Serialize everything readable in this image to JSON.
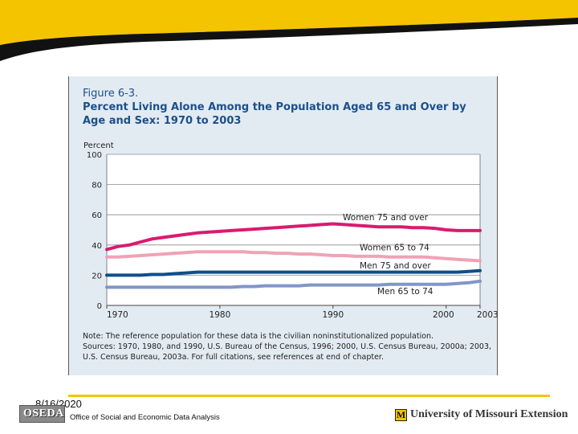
{
  "figure": {
    "label": "Figure 6-3.",
    "title": "Percent Living Alone Among the Population Aged 65 and Over by Age and Sex: 1970 to 2003",
    "note": "Note: The reference population for these data is the civilian noninstitutionalized population.",
    "sources": "Sources: 1970, 1980, and 1990, U.S. Bureau of the Census, 1996; 2000, U.S. Census Bureau, 2000a; 2003, U.S. Census Bureau, 2003a. For full citations, see references at end of chapter."
  },
  "chart_data": {
    "type": "line",
    "ylabel": "Percent",
    "ylim": [
      0,
      100
    ],
    "yticks": [
      0,
      20,
      40,
      60,
      80,
      100
    ],
    "xlim": [
      1970,
      2003
    ],
    "xticks": [
      1970,
      1980,
      1990,
      2000,
      2003
    ],
    "x": [
      1970,
      1971,
      1972,
      1973,
      1974,
      1975,
      1976,
      1977,
      1978,
      1979,
      1980,
      1981,
      1982,
      1983,
      1984,
      1985,
      1986,
      1987,
      1988,
      1989,
      1990,
      1991,
      1992,
      1993,
      1994,
      1995,
      1996,
      1997,
      1998,
      1999,
      2000,
      2001,
      2002,
      2003
    ],
    "series": [
      {
        "name": "Women 75 and over",
        "color": "#d81b6f",
        "values": [
          37,
          39,
          40,
          42,
          44,
          45,
          46,
          47,
          48,
          48.5,
          49,
          49.5,
          50,
          50.5,
          51,
          51.5,
          52,
          52.5,
          53,
          53.5,
          54,
          53.5,
          53,
          52.5,
          52,
          52,
          52,
          51.5,
          51.5,
          51,
          50,
          49.5,
          49.5,
          49.5
        ]
      },
      {
        "name": "Women 65 to 74",
        "color": "#f0a2b6",
        "values": [
          32,
          32,
          32.5,
          33,
          33.5,
          34,
          34.5,
          35,
          35.5,
          35.5,
          35.5,
          35.5,
          35.5,
          35,
          35,
          34.5,
          34.5,
          34,
          34,
          33.5,
          33,
          33,
          32.5,
          32.5,
          32.5,
          32,
          32,
          32,
          32,
          31.5,
          31,
          30.5,
          30,
          29.5
        ]
      },
      {
        "name": "Men 75 and over",
        "color": "#0e4f8b",
        "values": [
          20,
          20,
          20,
          20,
          20.5,
          20.5,
          21,
          21.5,
          22,
          22,
          22,
          22,
          22,
          22,
          22,
          22,
          22,
          22,
          22,
          22,
          22,
          22,
          22,
          22,
          22,
          22,
          22,
          22,
          22,
          22,
          22,
          22,
          22.5,
          23
        ]
      },
      {
        "name": "Men 65 to 74",
        "color": "#8196c8",
        "values": [
          12,
          12,
          12,
          12,
          12,
          12,
          12,
          12,
          12,
          12,
          12,
          12,
          12.5,
          12.5,
          13,
          13,
          13,
          13,
          13.5,
          13.5,
          13.5,
          13.5,
          13.5,
          13.5,
          13.5,
          14,
          14,
          14,
          14,
          14,
          14,
          14.5,
          15,
          16
        ]
      }
    ],
    "labels": [
      "Women 75 and over",
      "Women 65 to 74",
      "Men 75 and over",
      "Men 65 to 74"
    ]
  },
  "footer": {
    "date": "8/16/2020",
    "logo_text": "OSEDA",
    "organization": "Office of Social and Economic Data Analysis",
    "extension_mark": "M",
    "extension": "University of Missouri Extension"
  },
  "colors": {
    "accent": "#f5c400",
    "banner_black": "#111111",
    "card_bg": "#e3ebf2",
    "title_blue": "#1b4f8a"
  }
}
